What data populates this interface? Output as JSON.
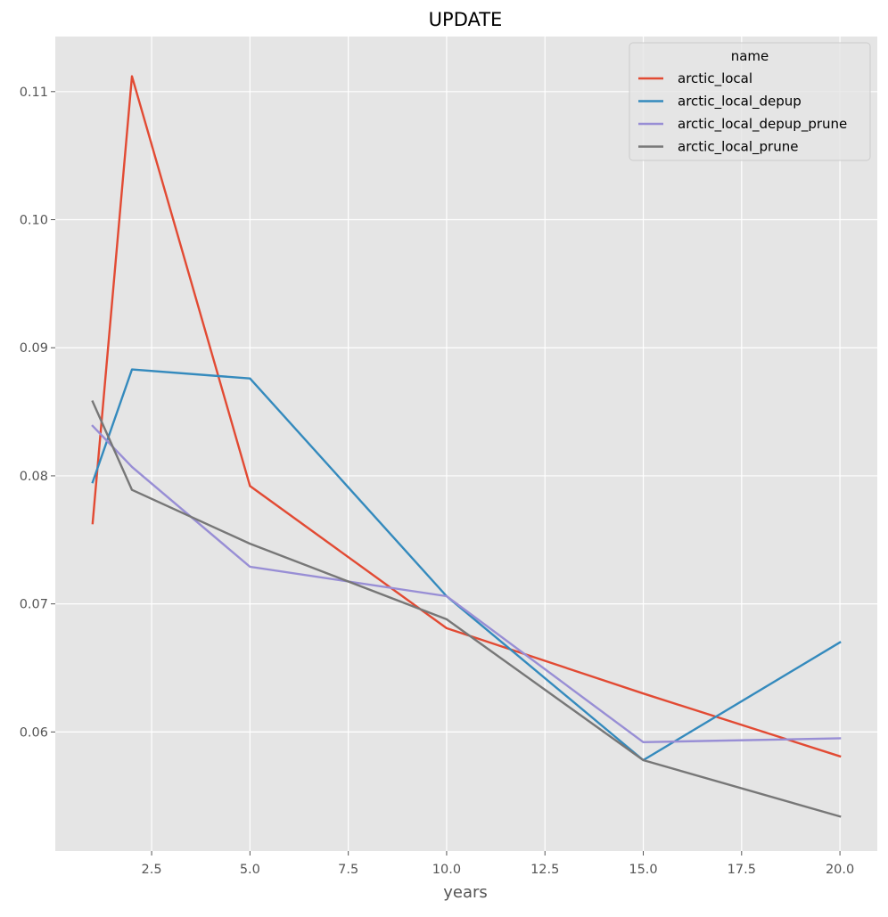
{
  "chart_data": {
    "type": "line",
    "title": "UPDATE",
    "xlabel": "years",
    "ylabel": "",
    "x": [
      1,
      2,
      5,
      10,
      15,
      20
    ],
    "xlim": [
      0.05,
      20.95
    ],
    "ylim": [
      0.0507,
      0.1143
    ],
    "xticks": [
      2.5,
      5.0,
      7.5,
      10.0,
      12.5,
      15.0,
      17.5,
      20.0
    ],
    "xtick_labels": [
      "2.5",
      "5.0",
      "7.5",
      "10.0",
      "12.5",
      "15.0",
      "17.5",
      "20.0"
    ],
    "yticks": [
      0.06,
      0.07,
      0.08,
      0.09,
      0.1,
      0.11
    ],
    "ytick_labels": [
      "0.06",
      "0.07",
      "0.08",
      "0.09",
      "0.10",
      "0.11"
    ],
    "grid": true,
    "legend": {
      "title": "name",
      "placement": "top-right"
    },
    "series": [
      {
        "name": "arctic_local",
        "color": "#E24A33",
        "values": [
          0.0763,
          0.1112,
          0.0792,
          0.0681,
          0.063,
          0.0581
        ]
      },
      {
        "name": "arctic_local_depup",
        "color": "#348ABD",
        "values": [
          0.0795,
          0.0883,
          0.0876,
          0.0706,
          0.0578,
          0.067
        ]
      },
      {
        "name": "arctic_local_depup_prune",
        "color": "#988ED5",
        "values": [
          0.0839,
          0.0807,
          0.0729,
          0.0706,
          0.0592,
          0.0595
        ]
      },
      {
        "name": "arctic_local_prune",
        "color": "#777777",
        "values": [
          0.0858,
          0.0789,
          0.0747,
          0.0688,
          0.0578,
          0.0534
        ]
      }
    ],
    "colors": {
      "background": "#E5E5E5",
      "grid": "#FFFFFF",
      "text": "#555555"
    }
  }
}
